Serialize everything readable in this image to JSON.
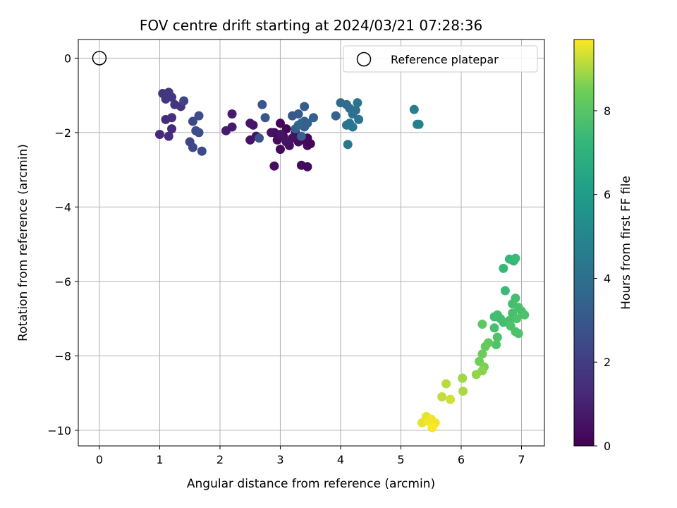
{
  "chart_data": {
    "type": "scatter",
    "title": "FOV centre drift starting at 2024/03/21 07:28:36",
    "xlabel": "Angular distance from reference (arcmin)",
    "ylabel": "Rotation from reference (arcmin)",
    "xlim": [
      -0.35,
      7.38
    ],
    "ylim": [
      -10.42,
      0.5
    ],
    "xticks": [
      0,
      1,
      2,
      3,
      4,
      5,
      6,
      7
    ],
    "yticks": [
      0,
      -2,
      -4,
      -6,
      -8,
      -10
    ],
    "grid": true,
    "legend": {
      "placement": "top-right",
      "entries": [
        "Reference platepar"
      ]
    },
    "reference": {
      "x": 0,
      "y": 0,
      "label": "Reference platepar",
      "marker": "open-circle"
    },
    "colorbar": {
      "label": "Hours from first FF file",
      "colormap": "viridis",
      "range": [
        0,
        9.7
      ],
      "ticks": [
        0,
        2,
        4,
        6,
        8
      ]
    },
    "points": [
      {
        "x": 3.0,
        "y": -1.75,
        "t": 0.1
      },
      {
        "x": 3.1,
        "y": -1.9,
        "t": 0.15
      },
      {
        "x": 3.25,
        "y": -2.0,
        "t": 0.2
      },
      {
        "x": 3.4,
        "y": -2.2,
        "t": 0.25
      },
      {
        "x": 3.45,
        "y": -2.35,
        "t": 0.3
      },
      {
        "x": 2.9,
        "y": -2.0,
        "t": 0.2
      },
      {
        "x": 2.95,
        "y": -2.2,
        "t": 0.3
      },
      {
        "x": 3.0,
        "y": -2.45,
        "t": 0.25
      },
      {
        "x": 3.15,
        "y": -2.35,
        "t": 0.4
      },
      {
        "x": 3.3,
        "y": -2.25,
        "t": 0.35
      },
      {
        "x": 2.9,
        "y": -2.9,
        "t": 0.3
      },
      {
        "x": 3.35,
        "y": -2.88,
        "t": 0.35
      },
      {
        "x": 3.45,
        "y": -2.92,
        "t": 0.3
      },
      {
        "x": 3.5,
        "y": -2.3,
        "t": 0.2
      },
      {
        "x": 3.45,
        "y": -2.15,
        "t": 0.2
      },
      {
        "x": 3.05,
        "y": -2.1,
        "t": 0.45
      },
      {
        "x": 2.85,
        "y": -2.0,
        "t": 0.5
      },
      {
        "x": 2.6,
        "y": -2.1,
        "t": 0.5
      },
      {
        "x": 2.5,
        "y": -2.2,
        "t": 0.6
      },
      {
        "x": 2.55,
        "y": -1.8,
        "t": 0.6
      },
      {
        "x": 2.5,
        "y": -1.75,
        "t": 0.65
      },
      {
        "x": 2.2,
        "y": -1.85,
        "t": 0.8
      },
      {
        "x": 2.1,
        "y": -1.95,
        "t": 0.8
      },
      {
        "x": 2.2,
        "y": -1.5,
        "t": 0.8
      },
      {
        "x": 3.0,
        "y": -2.05,
        "t": 0.6
      },
      {
        "x": 3.2,
        "y": -2.15,
        "t": 0.5
      },
      {
        "x": 3.1,
        "y": -2.25,
        "t": 0.6
      },
      {
        "x": 1.0,
        "y": -2.05,
        "t": 1.2
      },
      {
        "x": 1.15,
        "y": -2.1,
        "t": 1.4
      },
      {
        "x": 1.2,
        "y": -1.9,
        "t": 1.3
      },
      {
        "x": 1.1,
        "y": -1.65,
        "t": 1.4
      },
      {
        "x": 1.2,
        "y": -1.6,
        "t": 1.5
      },
      {
        "x": 1.05,
        "y": -0.95,
        "t": 1.6
      },
      {
        "x": 1.15,
        "y": -0.92,
        "t": 1.7
      },
      {
        "x": 1.2,
        "y": -1.05,
        "t": 1.8
      },
      {
        "x": 1.25,
        "y": -1.25,
        "t": 1.7
      },
      {
        "x": 1.1,
        "y": -1.1,
        "t": 1.8
      },
      {
        "x": 1.35,
        "y": -1.3,
        "t": 1.6
      },
      {
        "x": 1.4,
        "y": -1.15,
        "t": 2.2
      },
      {
        "x": 1.55,
        "y": -1.7,
        "t": 2.4
      },
      {
        "x": 1.6,
        "y": -1.95,
        "t": 2.5
      },
      {
        "x": 1.65,
        "y": -2.0,
        "t": 2.6
      },
      {
        "x": 1.5,
        "y": -2.25,
        "t": 2.3
      },
      {
        "x": 1.55,
        "y": -2.4,
        "t": 2.4
      },
      {
        "x": 1.7,
        "y": -2.5,
        "t": 2.5
      },
      {
        "x": 1.65,
        "y": -1.55,
        "t": 2.6
      },
      {
        "x": 2.65,
        "y": -2.15,
        "t": 2.8
      },
      {
        "x": 2.7,
        "y": -1.25,
        "t": 2.9
      },
      {
        "x": 2.75,
        "y": -1.6,
        "t": 3.0
      },
      {
        "x": 3.2,
        "y": -1.55,
        "t": 3.0
      },
      {
        "x": 3.3,
        "y": -1.5,
        "t": 3.1
      },
      {
        "x": 3.35,
        "y": -1.75,
        "t": 3.2
      },
      {
        "x": 3.4,
        "y": -1.85,
        "t": 3.3
      },
      {
        "x": 3.25,
        "y": -1.9,
        "t": 3.3
      },
      {
        "x": 3.35,
        "y": -2.1,
        "t": 3.4
      },
      {
        "x": 3.4,
        "y": -1.7,
        "t": 3.5
      },
      {
        "x": 3.45,
        "y": -1.75,
        "t": 3.4
      },
      {
        "x": 3.4,
        "y": -1.3,
        "t": 3.2
      },
      {
        "x": 3.55,
        "y": -1.6,
        "t": 3.4
      },
      {
        "x": 3.3,
        "y": -1.8,
        "t": 3.6
      },
      {
        "x": 3.92,
        "y": -1.55,
        "t": 3.5
      },
      {
        "x": 4.0,
        "y": -1.2,
        "t": 3.8
      },
      {
        "x": 4.1,
        "y": -1.25,
        "t": 3.8
      },
      {
        "x": 4.15,
        "y": -1.35,
        "t": 3.9
      },
      {
        "x": 4.2,
        "y": -1.5,
        "t": 4.0
      },
      {
        "x": 4.25,
        "y": -1.4,
        "t": 4.0
      },
      {
        "x": 4.28,
        "y": -1.2,
        "t": 4.1
      },
      {
        "x": 4.3,
        "y": -1.65,
        "t": 4.1
      },
      {
        "x": 4.15,
        "y": -1.75,
        "t": 4.3
      },
      {
        "x": 4.2,
        "y": -1.85,
        "t": 4.4
      },
      {
        "x": 4.1,
        "y": -1.8,
        "t": 4.3
      },
      {
        "x": 4.12,
        "y": -2.32,
        "t": 4.4
      },
      {
        "x": 5.22,
        "y": -1.38,
        "t": 4.6
      },
      {
        "x": 5.27,
        "y": -1.78,
        "t": 4.8
      },
      {
        "x": 5.3,
        "y": -1.78,
        "t": 4.8
      },
      {
        "x": 6.7,
        "y": -5.65,
        "t": 7.3
      },
      {
        "x": 6.8,
        "y": -5.4,
        "t": 7.3
      },
      {
        "x": 6.87,
        "y": -5.45,
        "t": 7.3
      },
      {
        "x": 6.9,
        "y": -5.38,
        "t": 7.4
      },
      {
        "x": 6.73,
        "y": -6.25,
        "t": 7.4
      },
      {
        "x": 6.55,
        "y": -6.95,
        "t": 7.5
      },
      {
        "x": 6.6,
        "y": -6.9,
        "t": 7.6
      },
      {
        "x": 6.65,
        "y": -7.0,
        "t": 7.6
      },
      {
        "x": 6.7,
        "y": -7.1,
        "t": 7.6
      },
      {
        "x": 6.55,
        "y": -7.25,
        "t": 7.7
      },
      {
        "x": 6.6,
        "y": -7.5,
        "t": 7.8
      },
      {
        "x": 6.58,
        "y": -7.7,
        "t": 7.9
      },
      {
        "x": 6.85,
        "y": -6.6,
        "t": 7.6
      },
      {
        "x": 6.9,
        "y": -6.45,
        "t": 7.6
      },
      {
        "x": 6.95,
        "y": -6.7,
        "t": 7.7
      },
      {
        "x": 6.85,
        "y": -6.85,
        "t": 7.7
      },
      {
        "x": 6.8,
        "y": -7.05,
        "t": 7.7
      },
      {
        "x": 6.82,
        "y": -7.2,
        "t": 7.8
      },
      {
        "x": 6.9,
        "y": -7.35,
        "t": 7.8
      },
      {
        "x": 6.95,
        "y": -7.4,
        "t": 7.8
      },
      {
        "x": 7.0,
        "y": -6.8,
        "t": 7.7
      },
      {
        "x": 7.05,
        "y": -6.9,
        "t": 7.8
      },
      {
        "x": 6.92,
        "y": -7.0,
        "t": 7.8
      },
      {
        "x": 6.35,
        "y": -7.15,
        "t": 8.1
      },
      {
        "x": 6.45,
        "y": -7.65,
        "t": 8.2
      },
      {
        "x": 6.4,
        "y": -7.75,
        "t": 8.3
      },
      {
        "x": 6.35,
        "y": -7.95,
        "t": 8.4
      },
      {
        "x": 6.3,
        "y": -8.15,
        "t": 8.5
      },
      {
        "x": 6.38,
        "y": -8.3,
        "t": 8.6
      },
      {
        "x": 6.35,
        "y": -8.4,
        "t": 8.7
      },
      {
        "x": 6.25,
        "y": -8.5,
        "t": 8.8
      },
      {
        "x": 6.02,
        "y": -8.6,
        "t": 8.9
      },
      {
        "x": 6.03,
        "y": -8.95,
        "t": 9.0
      },
      {
        "x": 5.75,
        "y": -8.75,
        "t": 9.1
      },
      {
        "x": 5.68,
        "y": -9.1,
        "t": 9.2
      },
      {
        "x": 5.82,
        "y": -9.17,
        "t": 9.3
      },
      {
        "x": 5.35,
        "y": -9.8,
        "t": 9.5
      },
      {
        "x": 5.42,
        "y": -9.63,
        "t": 9.5
      },
      {
        "x": 5.5,
        "y": -9.7,
        "t": 9.6
      },
      {
        "x": 5.57,
        "y": -9.8,
        "t": 9.6
      },
      {
        "x": 5.52,
        "y": -9.93,
        "t": 9.7
      },
      {
        "x": 5.45,
        "y": -9.75,
        "t": 9.6
      }
    ]
  }
}
